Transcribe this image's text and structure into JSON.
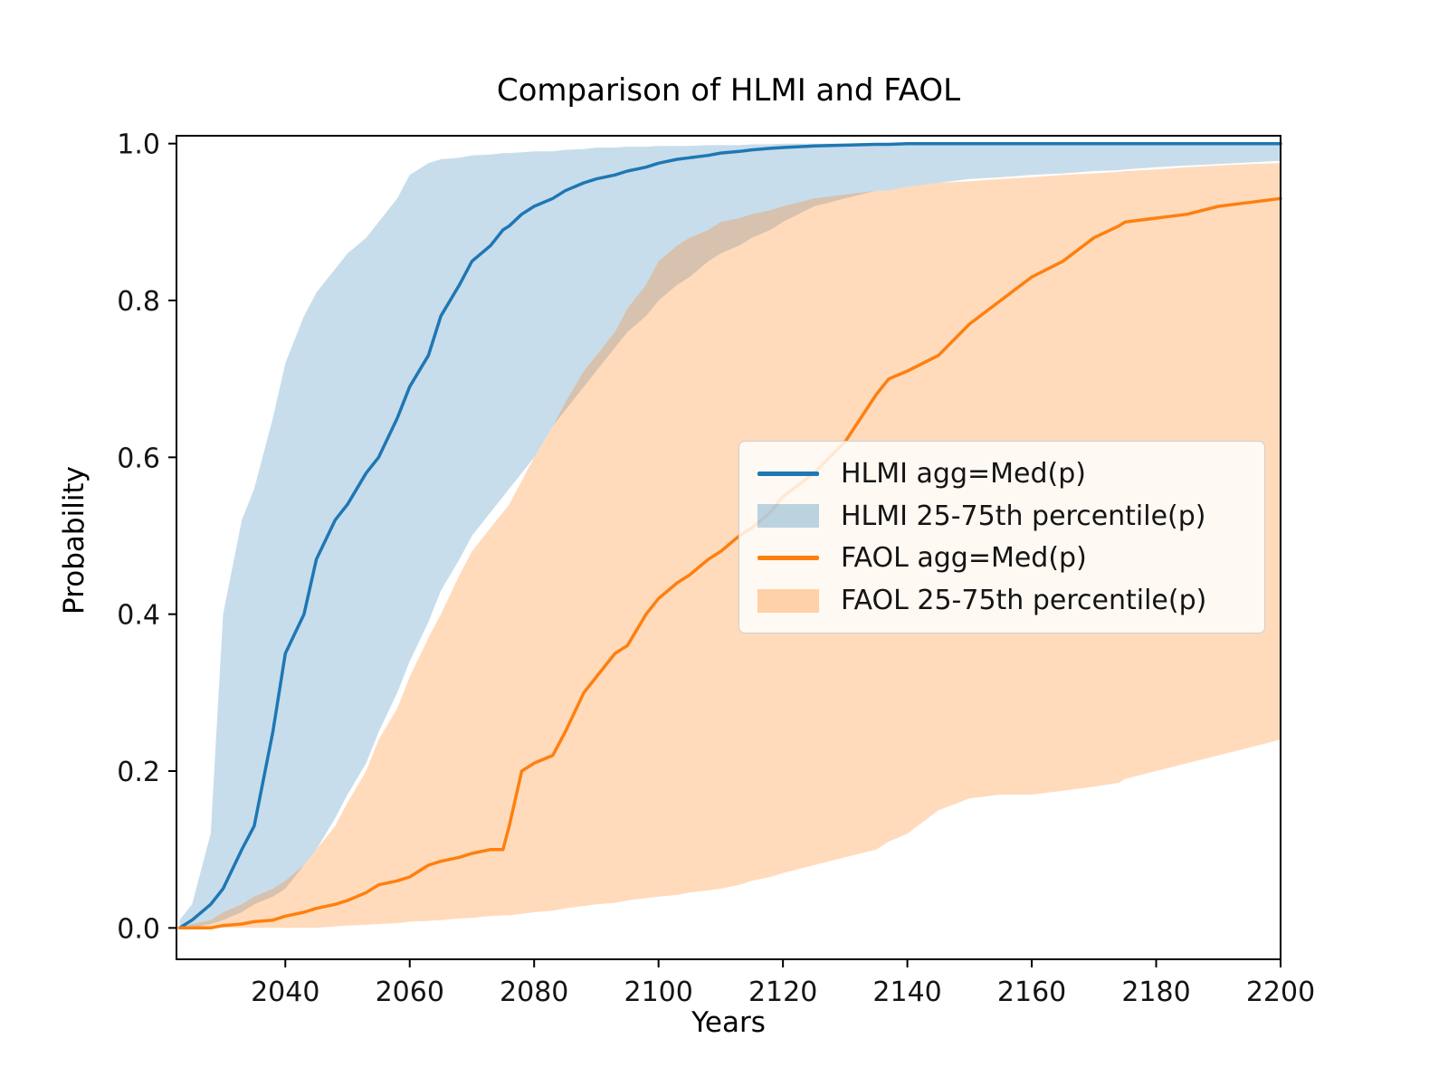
{
  "chart_data": {
    "type": "line",
    "title": "Comparison of HLMI and FAOL",
    "xlabel": "Years",
    "ylabel": "Probability",
    "xlim": [
      2022.5,
      2200
    ],
    "ylim": [
      -0.04,
      1.01
    ],
    "x_ticks": [
      2040,
      2060,
      2080,
      2100,
      2120,
      2140,
      2160,
      2180,
      2200
    ],
    "y_ticks": [
      0.0,
      0.2,
      0.4,
      0.6,
      0.8,
      1.0
    ],
    "y_tick_labels": [
      "0.0",
      "0.2",
      "0.4",
      "0.6",
      "0.8",
      "1.0"
    ],
    "grid": false,
    "legend_position": "center right",
    "x": [
      2023,
      2025,
      2028,
      2030,
      2033,
      2035,
      2038,
      2040,
      2043,
      2045,
      2048,
      2050,
      2053,
      2055,
      2058,
      2060,
      2063,
      2065,
      2068,
      2070,
      2073,
      2075,
      2076,
      2078,
      2080,
      2083,
      2085,
      2088,
      2090,
      2093,
      2095,
      2098,
      2100,
      2103,
      2105,
      2108,
      2110,
      2113,
      2115,
      2118,
      2120,
      2125,
      2130,
      2135,
      2137,
      2140,
      2145,
      2150,
      2155,
      2160,
      2165,
      2170,
      2174,
      2175,
      2180,
      2185,
      2190,
      2195,
      2200
    ],
    "series": [
      {
        "id": "hlmi-median",
        "name": "HLMI agg=Med(p)",
        "kind": "line",
        "color": "#1f77b4",
        "values": [
          0,
          0.01,
          0.03,
          0.05,
          0.1,
          0.13,
          0.25,
          0.35,
          0.4,
          0.47,
          0.52,
          0.54,
          0.58,
          0.6,
          0.65,
          0.69,
          0.73,
          0.78,
          0.82,
          0.85,
          0.87,
          0.89,
          0.895,
          0.91,
          0.92,
          0.93,
          0.94,
          0.95,
          0.955,
          0.96,
          0.965,
          0.97,
          0.975,
          0.98,
          0.982,
          0.985,
          0.988,
          0.99,
          0.992,
          0.994,
          0.995,
          0.997,
          0.998,
          0.999,
          0.999,
          1,
          1,
          1,
          1,
          1,
          1,
          1,
          1,
          1,
          1,
          1,
          1,
          1,
          1
        ]
      },
      {
        "id": "hlmi-percentile",
        "name": "HLMI 25-75th percentile(p)",
        "kind": "band",
        "color": "#1f77b4",
        "opacity": 0.25,
        "upper": [
          0.01,
          0.03,
          0.12,
          0.4,
          0.52,
          0.56,
          0.65,
          0.72,
          0.78,
          0.81,
          0.84,
          0.86,
          0.88,
          0.9,
          0.93,
          0.96,
          0.975,
          0.98,
          0.982,
          0.985,
          0.986,
          0.988,
          0.988,
          0.989,
          0.99,
          0.99,
          0.992,
          0.993,
          0.995,
          0.995,
          0.996,
          0.996,
          0.997,
          0.997,
          0.997,
          0.998,
          0.998,
          0.998,
          0.999,
          0.999,
          1,
          1,
          1,
          1,
          1,
          1,
          1,
          1,
          1,
          1,
          1,
          1,
          1,
          1,
          1,
          1,
          1,
          1,
          1
        ],
        "lower": [
          0,
          0,
          0.005,
          0.01,
          0.02,
          0.03,
          0.04,
          0.05,
          0.08,
          0.1,
          0.14,
          0.17,
          0.21,
          0.25,
          0.3,
          0.34,
          0.39,
          0.43,
          0.47,
          0.5,
          0.53,
          0.55,
          0.56,
          0.58,
          0.6,
          0.64,
          0.66,
          0.69,
          0.71,
          0.74,
          0.76,
          0.78,
          0.8,
          0.82,
          0.83,
          0.85,
          0.86,
          0.87,
          0.88,
          0.89,
          0.9,
          0.92,
          0.93,
          0.94,
          0.94,
          0.945,
          0.95,
          0.955,
          0.957,
          0.96,
          0.962,
          0.965,
          0.966,
          0.967,
          0.97,
          0.972,
          0.974,
          0.976,
          0.978
        ]
      },
      {
        "id": "faol-median",
        "name": "FAOL agg=Med(p)",
        "kind": "line",
        "color": "#ff7f0e",
        "values": [
          0,
          0,
          0,
          0.003,
          0.005,
          0.008,
          0.01,
          0.015,
          0.02,
          0.025,
          0.03,
          0.035,
          0.045,
          0.055,
          0.06,
          0.065,
          0.08,
          0.085,
          0.09,
          0.095,
          0.1,
          0.1,
          0.13,
          0.2,
          0.21,
          0.22,
          0.25,
          0.3,
          0.32,
          0.35,
          0.36,
          0.4,
          0.42,
          0.44,
          0.45,
          0.47,
          0.48,
          0.5,
          0.51,
          0.53,
          0.55,
          0.58,
          0.62,
          0.68,
          0.7,
          0.71,
          0.73,
          0.77,
          0.8,
          0.83,
          0.85,
          0.88,
          0.895,
          0.9,
          0.905,
          0.91,
          0.92,
          0.925,
          0.93
        ]
      },
      {
        "id": "faol-percentile",
        "name": "FAOL 25-75th percentile(p)",
        "kind": "band",
        "color": "#ff7f0e",
        "opacity": 0.28,
        "upper": [
          0,
          0.005,
          0.01,
          0.02,
          0.03,
          0.04,
          0.05,
          0.06,
          0.08,
          0.1,
          0.13,
          0.16,
          0.2,
          0.24,
          0.28,
          0.32,
          0.37,
          0.4,
          0.45,
          0.48,
          0.51,
          0.53,
          0.54,
          0.57,
          0.6,
          0.64,
          0.67,
          0.71,
          0.73,
          0.76,
          0.79,
          0.82,
          0.85,
          0.87,
          0.88,
          0.89,
          0.9,
          0.905,
          0.91,
          0.915,
          0.92,
          0.93,
          0.935,
          0.94,
          0.94,
          0.945,
          0.95,
          0.952,
          0.955,
          0.957,
          0.96,
          0.962,
          0.964,
          0.965,
          0.967,
          0.97,
          0.972,
          0.974,
          0.975
        ],
        "lower": [
          0,
          0,
          0,
          0,
          0,
          0,
          0,
          0,
          0,
          0,
          0.002,
          0.003,
          0.004,
          0.005,
          0.006,
          0.008,
          0.009,
          0.01,
          0.012,
          0.013,
          0.015,
          0.016,
          0.016,
          0.018,
          0.02,
          0.022,
          0.025,
          0.028,
          0.03,
          0.032,
          0.035,
          0.038,
          0.04,
          0.042,
          0.045,
          0.048,
          0.05,
          0.055,
          0.06,
          0.065,
          0.07,
          0.08,
          0.09,
          0.1,
          0.11,
          0.12,
          0.15,
          0.165,
          0.17,
          0.17,
          0.175,
          0.18,
          0.185,
          0.19,
          0.2,
          0.21,
          0.22,
          0.23,
          0.24
        ]
      }
    ]
  },
  "colors": {
    "hlmi": "#1f77b4",
    "faol": "#ff7f0e",
    "spine": "#000000",
    "background": "#ffffff"
  }
}
